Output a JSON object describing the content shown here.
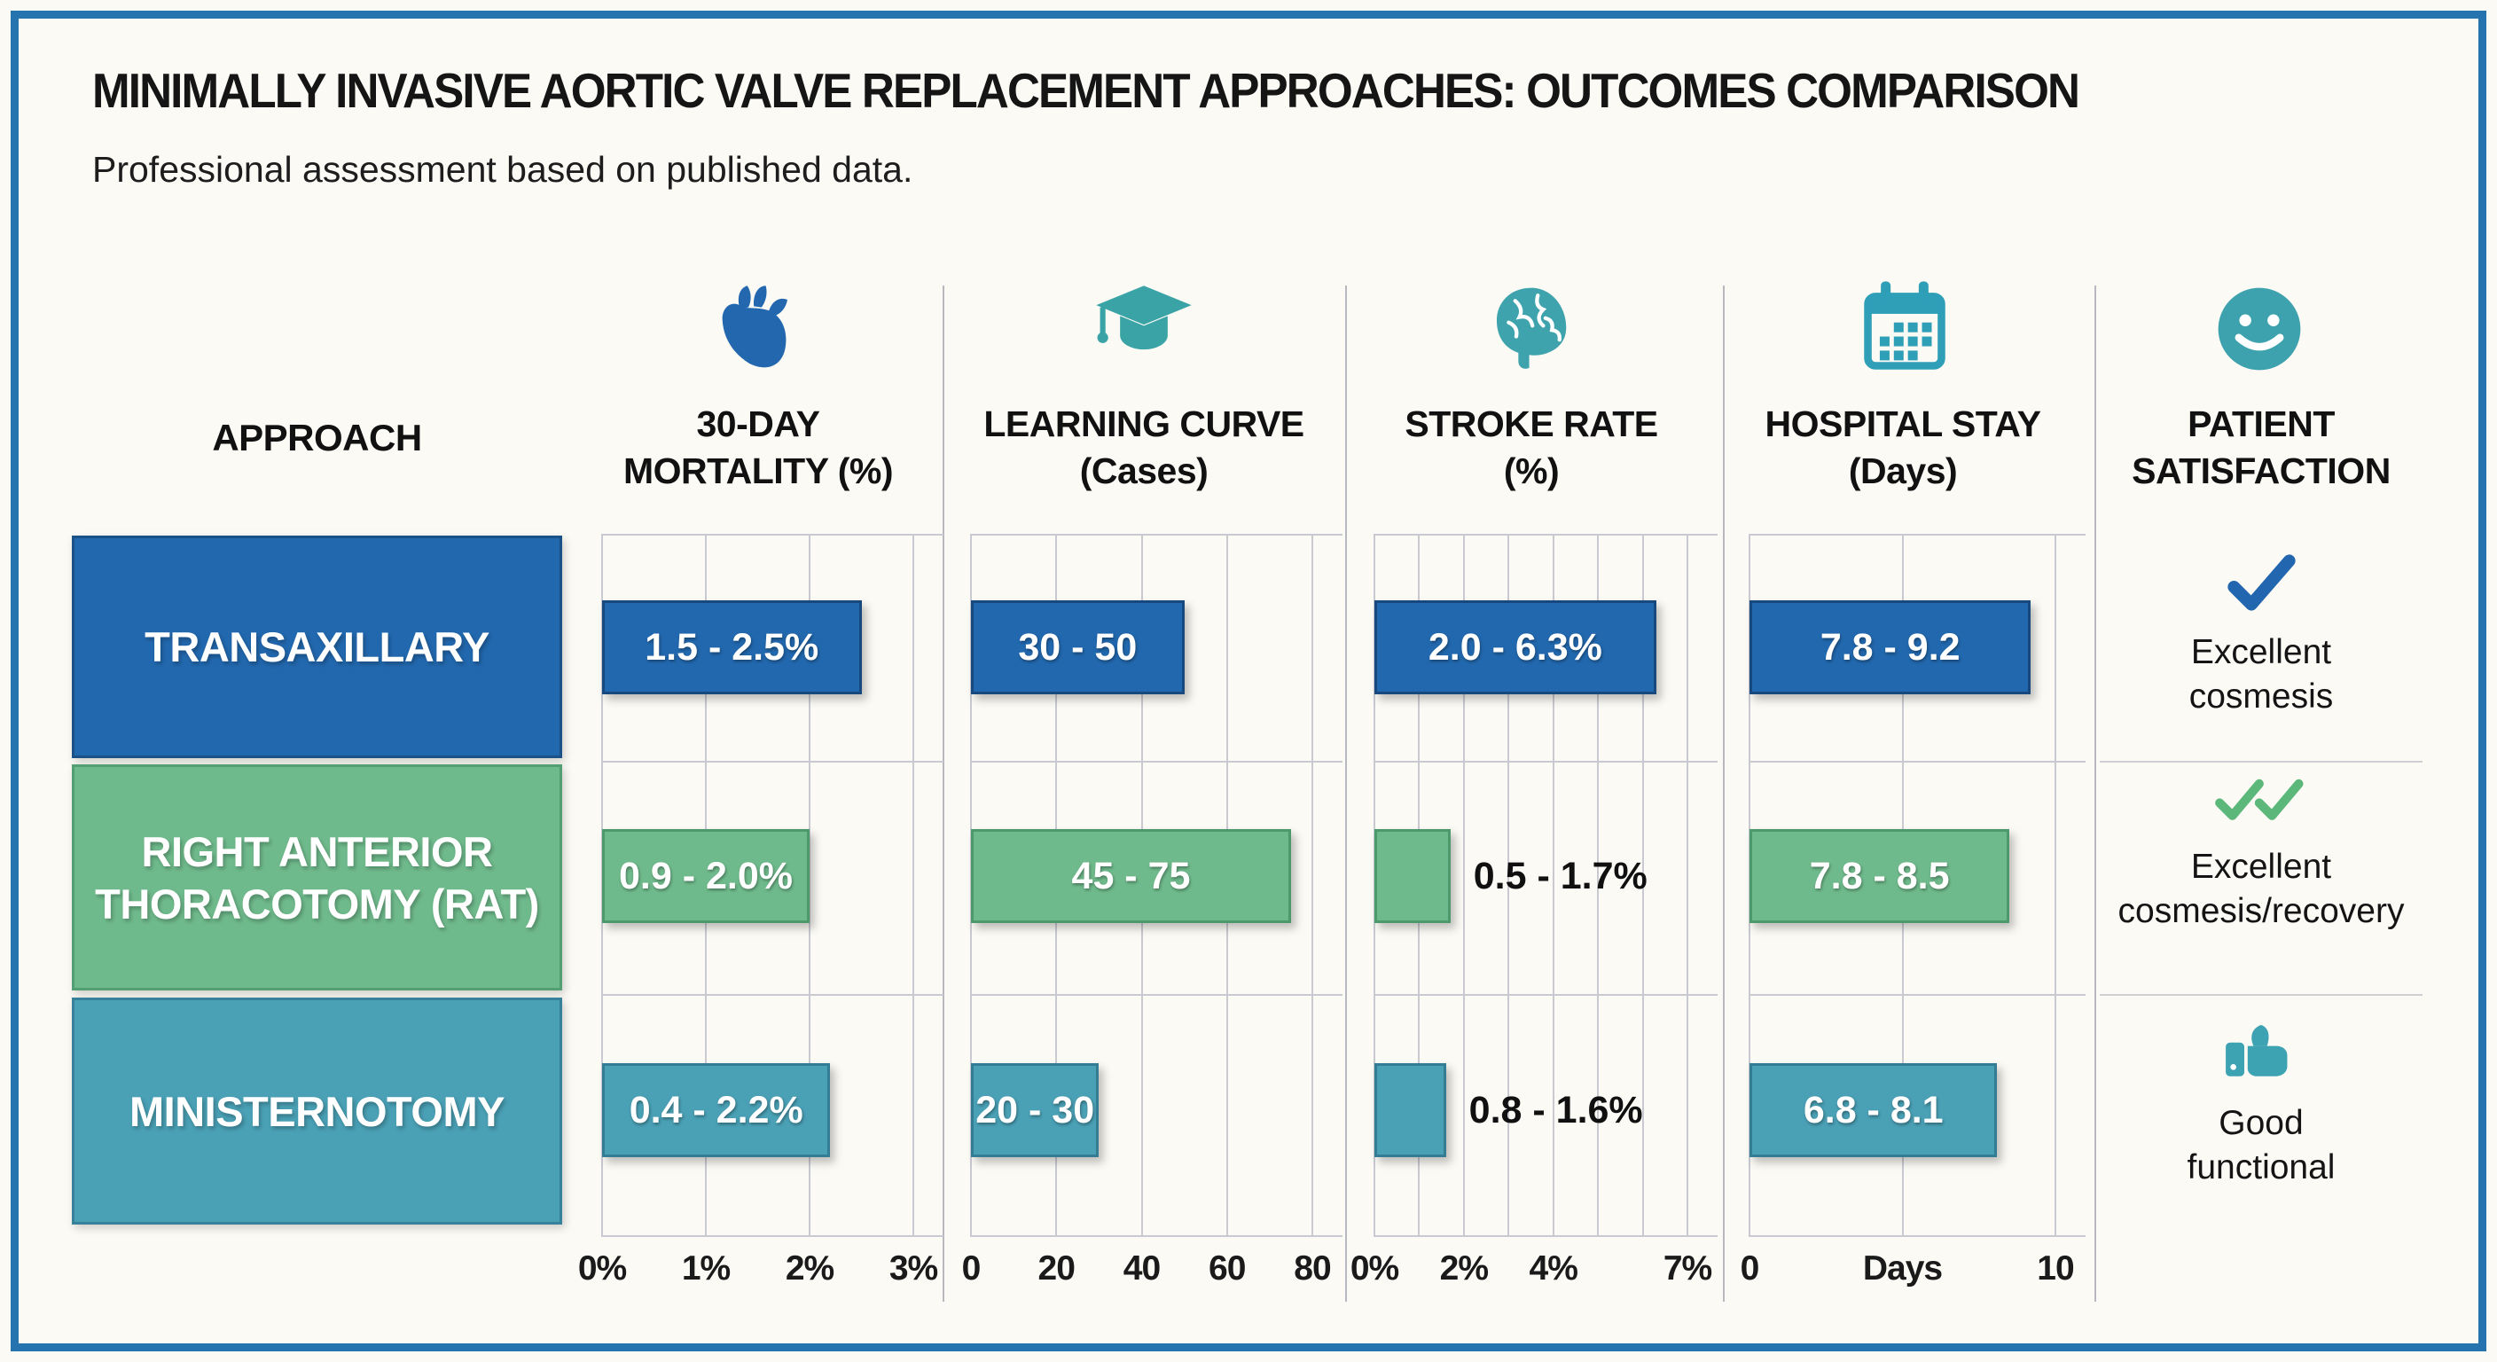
{
  "header": {
    "title": "MINIMALLY INVASIVE AORTIC VALVE REPLACEMENT APPROACHES: OUTCOMES COMPARISON",
    "subtitle": "Professional assessment based on published data."
  },
  "columns": {
    "approach_header": "APPROACH",
    "metric_headers": [
      {
        "icon": "heart-icon",
        "line1": "30-DAY",
        "line2": "MORTALITY (%)"
      },
      {
        "icon": "graduation-cap-icon",
        "line1": "LEARNING CURVE",
        "line2": "(Cases)"
      },
      {
        "icon": "brain-icon",
        "line1": "STROKE RATE",
        "line2": "(%)"
      },
      {
        "icon": "calendar-icon",
        "line1": "HOSPITAL STAY",
        "line2": "(Days)"
      },
      {
        "icon": "smiley-face-icon",
        "line1": "PATIENT",
        "line2": "SATISFACTION"
      }
    ]
  },
  "approaches": [
    {
      "label": "TRANSAXILLARY",
      "color": "#2268ae"
    },
    {
      "label": "RIGHT ANTERIOR\nTHORACOTOMY (RAT)",
      "color": "#6fba8c"
    },
    {
      "label": "MINISTERNOTOMY",
      "color": "#4aa0b5"
    }
  ],
  "chart_data": {
    "type": "bar",
    "orientation": "horizontal",
    "categories": [
      "TRANSAXILLARY",
      "RIGHT ANTERIOR THORACOTOMY (RAT)",
      "MINISTERNOTOMY"
    ],
    "series_colors": [
      "#2268ae",
      "#6fba8c",
      "#4aa0b5"
    ],
    "grid": true,
    "charts": [
      {
        "id": "mortality",
        "title": "30-DAY MORTALITY (%)",
        "xlim": [
          0,
          3
        ],
        "gridlines": [
          0,
          1,
          2,
          3
        ],
        "ticks": [
          {
            "label": "0%",
            "value": 0
          },
          {
            "label": "1%",
            "value": 1
          },
          {
            "label": "2%",
            "value": 2
          },
          {
            "label": "3%",
            "value": 3
          }
        ],
        "bars": [
          {
            "approach": "TRANSAXILLARY",
            "low": 1.5,
            "high": 2.5,
            "range_label": "1.5 - 2.5%",
            "label_position": "inside"
          },
          {
            "approach": "RIGHT ANTERIOR THORACOTOMY (RAT)",
            "low": 0.9,
            "high": 2.0,
            "range_label": "0.9 - 2.0%",
            "label_position": "inside"
          },
          {
            "approach": "MINISTERNOTOMY",
            "low": 0.4,
            "high": 2.2,
            "range_label": "0.4 - 2.2%",
            "label_position": "inside"
          }
        ]
      },
      {
        "id": "learning-curve",
        "title": "LEARNING CURVE (Cases)",
        "xlim": [
          0,
          80
        ],
        "gridlines": [
          0,
          20,
          40,
          60,
          80
        ],
        "ticks": [
          {
            "label": "0",
            "value": 0
          },
          {
            "label": "20",
            "value": 20
          },
          {
            "label": "40",
            "value": 40
          },
          {
            "label": "60",
            "value": 60
          },
          {
            "label": "80",
            "value": 80
          }
        ],
        "bars": [
          {
            "approach": "TRANSAXILLARY",
            "low": 30,
            "high": 50,
            "range_label": "30 - 50",
            "label_position": "inside"
          },
          {
            "approach": "RIGHT ANTERIOR THORACOTOMY (RAT)",
            "low": 45,
            "high": 75,
            "range_label": "45 - 75",
            "label_position": "inside"
          },
          {
            "approach": "MINISTERNOTOMY",
            "low": 20,
            "high": 30,
            "range_label": "20 - 30",
            "label_position": "inside"
          }
        ]
      },
      {
        "id": "stroke-rate",
        "title": "STROKE RATE (%)",
        "xlim": [
          0,
          7
        ],
        "gridlines": [
          0,
          1,
          2,
          3,
          4,
          5,
          6,
          7
        ],
        "ticks": [
          {
            "label": "0%",
            "value": 0
          },
          {
            "label": "2%",
            "value": 2
          },
          {
            "label": "4%",
            "value": 4
          },
          {
            "label": "7%",
            "value": 7
          }
        ],
        "bars": [
          {
            "approach": "TRANSAXILLARY",
            "low": 2.0,
            "high": 6.3,
            "range_label": "2.0 - 6.3%",
            "label_position": "inside"
          },
          {
            "approach": "RIGHT ANTERIOR THORACOTOMY (RAT)",
            "low": 0.5,
            "high": 1.7,
            "range_label": "0.5 - 1.7%",
            "label_position": "outside"
          },
          {
            "approach": "MINISTERNOTOMY",
            "low": 0.8,
            "high": 1.6,
            "range_label": "0.8 - 1.6%",
            "label_position": "outside"
          }
        ]
      },
      {
        "id": "hospital-stay",
        "title": "HOSPITAL STAY (Days)",
        "xlim": [
          0,
          10
        ],
        "gridlines": [
          0,
          5,
          10
        ],
        "ticks": [
          {
            "label": "0",
            "value": 0
          },
          {
            "label": "Days",
            "value": 5
          },
          {
            "label": "10",
            "value": 10
          }
        ],
        "bars": [
          {
            "approach": "TRANSAXILLARY",
            "low": 7.8,
            "high": 9.2,
            "range_label": "7.8 - 9.2",
            "label_position": "inside"
          },
          {
            "approach": "RIGHT ANTERIOR THORACOTOMY (RAT)",
            "low": 7.8,
            "high": 8.5,
            "range_label": "7.8 - 8.5",
            "label_position": "inside"
          },
          {
            "approach": "MINISTERNOTOMY",
            "low": 6.8,
            "high": 8.1,
            "range_label": "6.8 - 8.1",
            "label_position": "inside"
          }
        ]
      }
    ]
  },
  "satisfaction": [
    {
      "icon": "checkmark-icon",
      "icon_color": "#2166ae",
      "text": "Excellent\ncosmesis"
    },
    {
      "icon": "double-checkmark-icon",
      "icon_color": "#5cb87a",
      "text": "Excellent\ncosmesis/recovery"
    },
    {
      "icon": "thumbs-up-icon",
      "icon_color": "#3da2b2",
      "text": "Good\nfunctional"
    }
  ],
  "colors": {
    "frame": "#2574af",
    "background": "#fbfaf5",
    "row_blue": "#2268ae",
    "row_green": "#6fba8c",
    "row_teal": "#4aa0b5",
    "icon_blue": "#2368af",
    "icon_teal": "#3aa3ad",
    "gridline": "#c9c9d2"
  }
}
